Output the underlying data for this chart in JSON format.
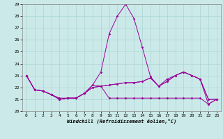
{
  "xlabel": "Windchill (Refroidissement éolien,°C)",
  "xlim": [
    -0.5,
    23.5
  ],
  "ylim": [
    20,
    29
  ],
  "yticks": [
    20,
    21,
    22,
    23,
    24,
    25,
    26,
    27,
    28,
    29
  ],
  "xticks": [
    0,
    1,
    2,
    3,
    4,
    5,
    6,
    7,
    8,
    9,
    10,
    11,
    12,
    13,
    14,
    15,
    16,
    17,
    18,
    19,
    20,
    21,
    22,
    23
  ],
  "background_color": "#cce9e9",
  "grid_color": "#aad4d4",
  "line_color": "#990099",
  "series": [
    [
      23.0,
      21.8,
      21.7,
      21.4,
      21.0,
      21.1,
      21.1,
      21.5,
      22.2,
      23.3,
      26.5,
      28.0,
      29.0,
      27.8,
      25.4,
      22.9,
      22.1,
      22.7,
      23.0,
      23.3,
      23.0,
      22.7,
      21.0,
      21.0
    ],
    [
      23.0,
      21.8,
      21.7,
      21.4,
      21.0,
      21.1,
      21.1,
      21.5,
      22.0,
      22.1,
      22.2,
      22.3,
      22.4,
      22.4,
      22.5,
      22.8,
      22.1,
      22.5,
      23.0,
      23.3,
      23.0,
      22.7,
      21.0,
      21.0
    ],
    [
      23.0,
      21.8,
      21.7,
      21.4,
      21.1,
      21.1,
      21.1,
      21.5,
      22.0,
      22.1,
      21.1,
      21.1,
      21.1,
      21.1,
      21.1,
      21.1,
      21.1,
      21.1,
      21.1,
      21.1,
      21.1,
      21.1,
      20.6,
      21.0
    ],
    [
      23.0,
      21.8,
      21.7,
      21.4,
      21.0,
      21.1,
      21.1,
      21.5,
      22.2,
      22.1,
      22.2,
      22.3,
      22.4,
      22.4,
      22.5,
      22.8,
      22.1,
      22.5,
      23.0,
      23.3,
      23.0,
      22.7,
      20.6,
      21.0
    ]
  ]
}
